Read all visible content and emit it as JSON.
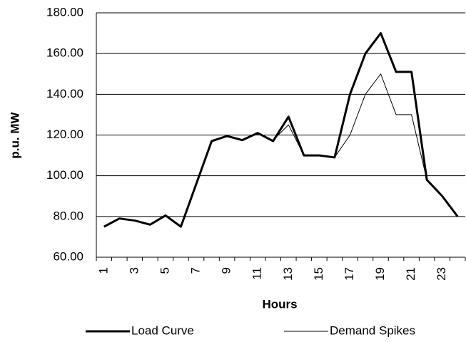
{
  "chart_data": {
    "type": "line",
    "x_label": "Hours",
    "y_label": "p.u. MW",
    "categories": [
      "1",
      null,
      "3",
      null,
      "5",
      null,
      "7",
      null,
      "9",
      null,
      "11",
      null,
      "13",
      null,
      "15",
      null,
      "17",
      null,
      "19",
      null,
      "21",
      null,
      "23",
      null
    ],
    "series": [
      {
        "name": "Load Curve",
        "color": "#000000",
        "width": 3,
        "values": [
          75,
          79,
          78,
          76,
          80.5,
          75,
          96,
          117,
          119.5,
          117.5,
          121,
          117,
          129,
          110,
          110,
          109,
          140,
          160,
          170,
          151,
          151,
          98,
          90,
          80
        ]
      },
      {
        "name": "Demand Spikes",
        "color": "#000000",
        "width": 1,
        "values": [
          75,
          79,
          78,
          76,
          80.5,
          75,
          96,
          117,
          119.5,
          117.5,
          120.5,
          117.5,
          125,
          110,
          110,
          109,
          120,
          140,
          150,
          130,
          130,
          98,
          90,
          80
        ]
      }
    ],
    "ylim": [
      60,
      180
    ],
    "yticks": [
      {
        "value": 60,
        "label": "60.00"
      },
      {
        "value": 80,
        "label": "80.00"
      },
      {
        "value": 100,
        "label": "100.00"
      },
      {
        "value": 120,
        "label": "120.00"
      },
      {
        "value": 140,
        "label": "140.00"
      },
      {
        "value": 160,
        "label": "160.00"
      },
      {
        "value": 180,
        "label": "180.00"
      }
    ],
    "grid": true,
    "legend": "bottom"
  }
}
